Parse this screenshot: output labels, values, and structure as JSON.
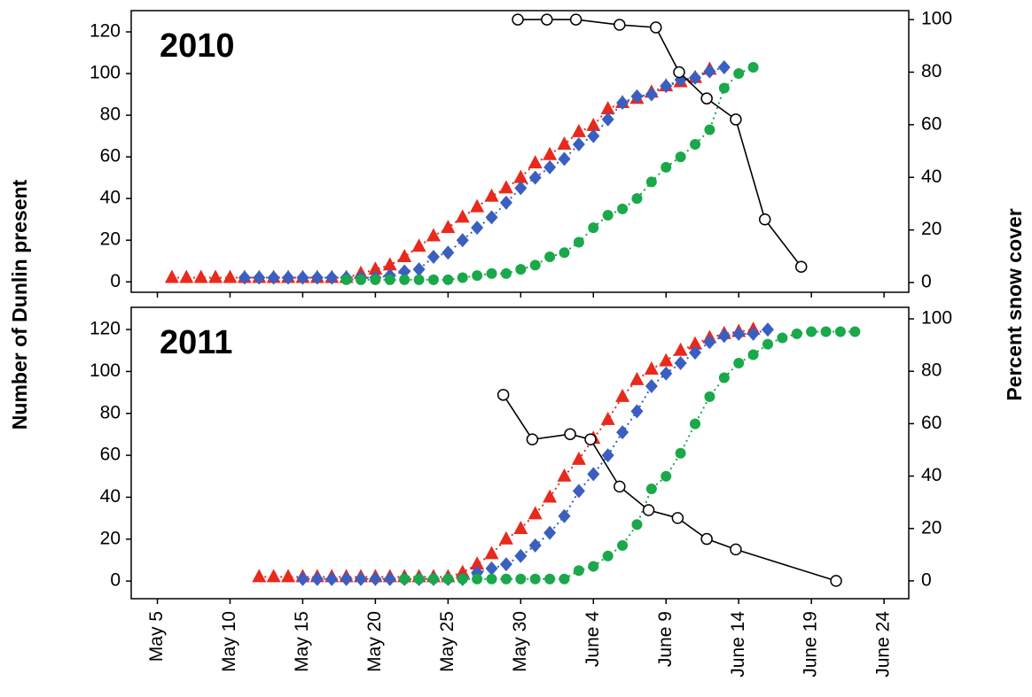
{
  "chart_data": [
    {
      "type": "line",
      "title": "2010",
      "ylabel": "Number of Dunlin present",
      "y2label": "Percent snow cover",
      "xlim": [
        3.2,
        56.7
      ],
      "ylim": [
        -5,
        130.2
      ],
      "yticks": [
        0,
        20,
        40,
        60,
        80,
        100,
        120
      ],
      "y2lim": [
        -3.7,
        103.4
      ],
      "y2ticks": [
        0,
        20,
        40,
        60,
        80,
        100
      ],
      "series": [
        {
          "color": "#e8291c",
          "marker": "triangle",
          "linestyle": "dotted",
          "x": [
            6,
            7,
            8,
            9,
            10,
            11,
            12,
            13,
            14,
            15,
            16,
            17,
            18,
            19,
            20,
            21,
            22,
            23,
            24,
            25,
            26,
            27,
            28,
            29,
            30,
            31,
            32,
            33,
            34,
            35,
            36,
            37,
            38,
            39,
            40,
            41,
            42,
            43
          ],
          "values": [
            2,
            2,
            2,
            2,
            2,
            2,
            2,
            2,
            2,
            2,
            2,
            2,
            2,
            4,
            6,
            8,
            12,
            17,
            22,
            26,
            31,
            36,
            41,
            45,
            50,
            57,
            61,
            66,
            72,
            75,
            83,
            86,
            88,
            91,
            94,
            96,
            98,
            102
          ]
        },
        {
          "color": "#3b5fc0",
          "marker": "diamond",
          "linestyle": "dotted",
          "x": [
            11,
            12,
            13,
            14,
            15,
            16,
            17,
            18,
            19,
            20,
            21,
            22,
            23,
            24,
            25,
            26,
            27,
            28,
            29,
            30,
            31,
            32,
            33,
            34,
            35,
            36,
            37,
            38,
            39,
            40,
            41,
            42,
            43,
            44
          ],
          "values": [
            2,
            2,
            2,
            2,
            2,
            2,
            2,
            2,
            2,
            2,
            3,
            5,
            6,
            12,
            14,
            20,
            26,
            31,
            38,
            45,
            50,
            55,
            59,
            66,
            70,
            78,
            86,
            89,
            90,
            94,
            97,
            98,
            101,
            103
          ]
        },
        {
          "color": "#1aa84a",
          "marker": "circle",
          "linestyle": "dotted",
          "x": [
            18,
            19,
            20,
            21,
            22,
            23,
            24,
            25,
            26,
            27,
            28,
            29,
            30,
            31,
            32,
            33,
            34,
            35,
            36,
            37,
            38,
            39,
            40,
            41,
            42,
            43,
            44,
            45,
            46
          ],
          "values": [
            1,
            1,
            1,
            1,
            1,
            1,
            1,
            1,
            2,
            3,
            4,
            4,
            6,
            8,
            12,
            14,
            19,
            26,
            32,
            35,
            40,
            48,
            55,
            60,
            66,
            73,
            93,
            100,
            103
          ]
        },
        {
          "color": "#000000",
          "marker": "open-circle",
          "linestyle": "solid",
          "axis": "y2",
          "x": [
            29.8,
            31.8,
            33.8,
            36.8,
            39.3,
            40.9,
            42.8,
            44.8,
            46.8,
            49.3
          ],
          "values": [
            100,
            100,
            100,
            98,
            97,
            80,
            70,
            62,
            24,
            6
          ]
        }
      ]
    },
    {
      "type": "line",
      "title": "2011",
      "xlim": [
        3.2,
        56.7
      ],
      "ylim": [
        -8.4,
        130.6
      ],
      "yticks": [
        0,
        20,
        40,
        60,
        80,
        100,
        120
      ],
      "y2lim": [
        -6.8,
        104.4
      ],
      "y2ticks": [
        0,
        20,
        40,
        60,
        80,
        100
      ],
      "xticks": [
        {
          "value": 5,
          "label": "May 5"
        },
        {
          "value": 10,
          "label": "May 10"
        },
        {
          "value": 15,
          "label": "May 15"
        },
        {
          "value": 20,
          "label": "May 20"
        },
        {
          "value": 25,
          "label": "May 25"
        },
        {
          "value": 30,
          "label": "May 30"
        },
        {
          "value": 35,
          "label": "June 4"
        },
        {
          "value": 40,
          "label": "June 9"
        },
        {
          "value": 45,
          "label": "June 14"
        },
        {
          "value": 50,
          "label": "June 19"
        },
        {
          "value": 55,
          "label": "June 24"
        }
      ],
      "series": [
        {
          "color": "#e8291c",
          "marker": "triangle",
          "linestyle": "dotted",
          "x": [
            12,
            13,
            14,
            15,
            16,
            17,
            18,
            19,
            20,
            21,
            22,
            23,
            24,
            25,
            26,
            27,
            28,
            29,
            30,
            31,
            32,
            33,
            34,
            35,
            36,
            37,
            38,
            39,
            40,
            41,
            42,
            43,
            44,
            45,
            46
          ],
          "values": [
            2,
            2,
            2,
            2,
            2,
            2,
            2,
            2,
            2,
            2,
            2,
            2,
            2,
            2,
            4,
            8,
            13,
            20,
            25,
            32,
            40,
            50,
            58,
            68,
            77,
            88,
            96,
            101,
            105,
            110,
            113,
            116,
            118,
            119,
            120
          ]
        },
        {
          "color": "#3b5fc0",
          "marker": "diamond",
          "linestyle": "dotted",
          "x": [
            15,
            16,
            17,
            18,
            19,
            20,
            21,
            22,
            23,
            24,
            25,
            26,
            27,
            28,
            29,
            30,
            31,
            32,
            33,
            34,
            35,
            36,
            37,
            38,
            39,
            40,
            41,
            42,
            43,
            44,
            45,
            46,
            47
          ],
          "values": [
            1,
            1,
            1,
            1,
            1,
            1,
            1,
            1,
            1,
            1,
            1,
            1,
            4,
            6,
            8,
            12,
            17,
            23,
            31,
            43,
            51,
            60,
            71,
            81,
            93,
            99,
            104,
            109,
            114,
            117,
            118,
            118,
            120
          ]
        },
        {
          "color": "#1aa84a",
          "marker": "circle",
          "linestyle": "dotted",
          "x": [
            22,
            23,
            24,
            25,
            26,
            27,
            28,
            29,
            30,
            31,
            32,
            33,
            34,
            35,
            36,
            37,
            38,
            39,
            40,
            41,
            42,
            43,
            44,
            45,
            46,
            47,
            48,
            49,
            50,
            51,
            52,
            53
          ],
          "values": [
            1,
            1,
            1,
            1,
            1,
            1,
            1,
            1,
            1,
            1,
            1,
            1,
            5,
            7,
            12,
            17,
            27,
            44,
            50,
            61,
            75,
            88,
            97,
            104,
            108,
            113,
            116,
            118,
            119,
            119,
            119,
            119
          ]
        },
        {
          "color": "#000000",
          "marker": "open-circle",
          "linestyle": "solid",
          "axis": "y2",
          "x": [
            28.8,
            30.8,
            33.4,
            34.8,
            36.8,
            38.8,
            40.8,
            42.8,
            44.8,
            51.7
          ],
          "values": [
            71,
            54,
            56,
            54,
            36,
            27,
            24,
            16,
            12,
            0
          ]
        }
      ]
    }
  ]
}
